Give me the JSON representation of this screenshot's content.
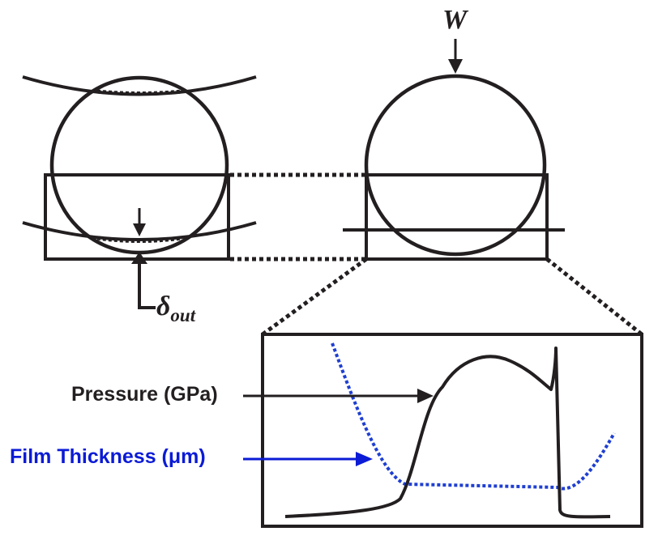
{
  "labels": {
    "load": "W",
    "deflection_symbol": "δ",
    "deflection_subscript": "out",
    "pressure": "Pressure (GPa)",
    "film_thickness": "Film Thickness (μm)"
  },
  "colors": {
    "line": "#231f20",
    "film_thickness": "#1f3fd1",
    "film_label": "#0b1bd6",
    "background": "#ffffff"
  }
}
